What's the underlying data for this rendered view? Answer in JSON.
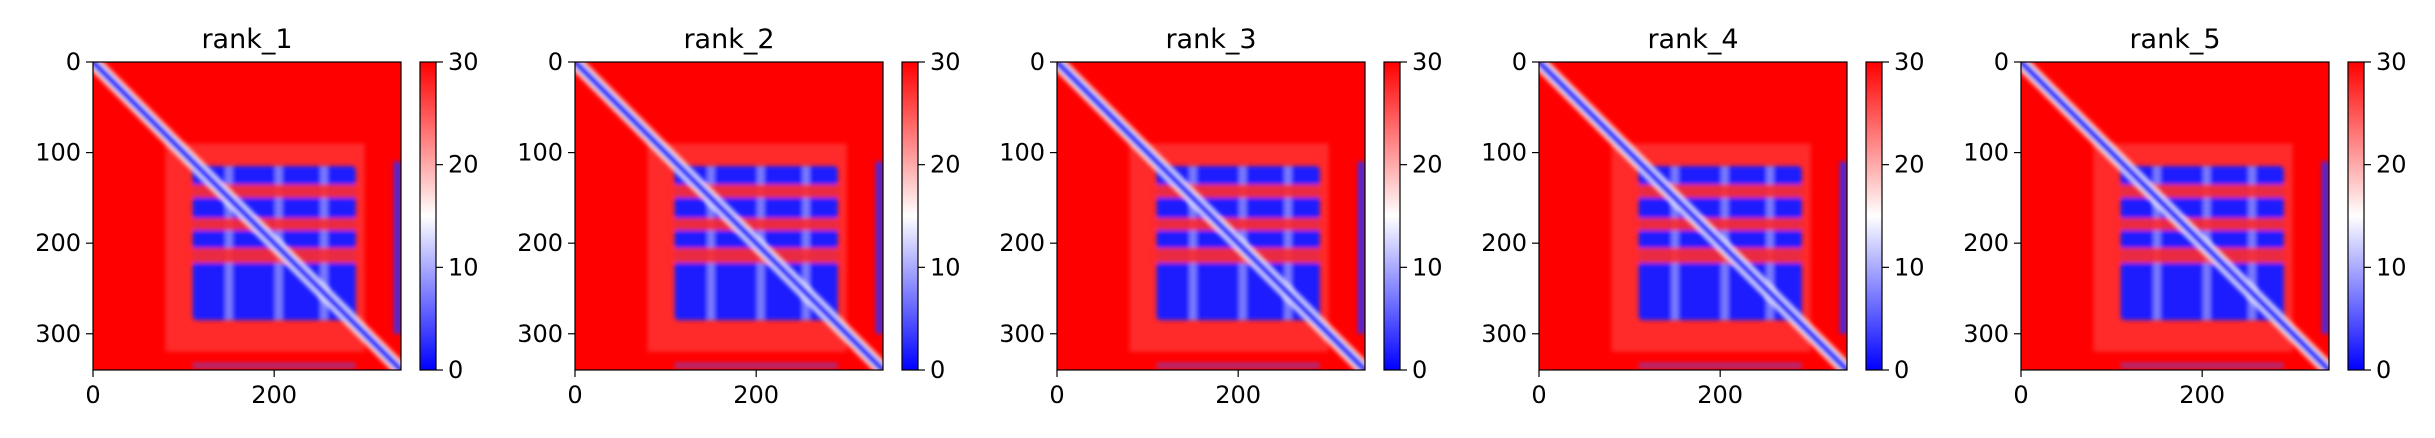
{
  "chart_data": [
    {
      "type": "heatmap",
      "title": "rank_1",
      "xticks": [
        "0",
        "200"
      ],
      "yticks": [
        "0",
        "100",
        "200",
        "300"
      ],
      "cbar_ticks": [
        "0",
        "10",
        "20",
        "30"
      ],
      "xlim": [
        0,
        340
      ],
      "ylim": [
        340,
        0
      ],
      "clim": [
        0,
        30
      ],
      "colormap": "bwr"
    },
    {
      "type": "heatmap",
      "title": "rank_2",
      "xticks": [
        "0",
        "200"
      ],
      "yticks": [
        "0",
        "100",
        "200",
        "300"
      ],
      "cbar_ticks": [
        "0",
        "10",
        "20",
        "30"
      ],
      "xlim": [
        0,
        340
      ],
      "ylim": [
        340,
        0
      ],
      "clim": [
        0,
        30
      ],
      "colormap": "bwr"
    },
    {
      "type": "heatmap",
      "title": "rank_3",
      "xticks": [
        "0",
        "200"
      ],
      "yticks": [
        "0",
        "100",
        "200",
        "300"
      ],
      "cbar_ticks": [
        "0",
        "10",
        "20",
        "30"
      ],
      "xlim": [
        0,
        340
      ],
      "ylim": [
        340,
        0
      ],
      "clim": [
        0,
        30
      ],
      "colormap": "bwr"
    },
    {
      "type": "heatmap",
      "title": "rank_4",
      "xticks": [
        "0",
        "200"
      ],
      "yticks": [
        "0",
        "100",
        "200",
        "300"
      ],
      "cbar_ticks": [
        "0",
        "10",
        "20",
        "30"
      ],
      "xlim": [
        0,
        340
      ],
      "ylim": [
        340,
        0
      ],
      "clim": [
        0,
        30
      ],
      "colormap": "bwr"
    },
    {
      "type": "heatmap",
      "title": "rank_5",
      "xticks": [
        "0",
        "200"
      ],
      "yticks": [
        "0",
        "100",
        "200",
        "300"
      ],
      "cbar_ticks": [
        "0",
        "10",
        "20",
        "30"
      ],
      "xlim": [
        0,
        340
      ],
      "ylim": [
        340,
        0
      ],
      "clim": [
        0,
        30
      ],
      "colormap": "bwr"
    }
  ]
}
